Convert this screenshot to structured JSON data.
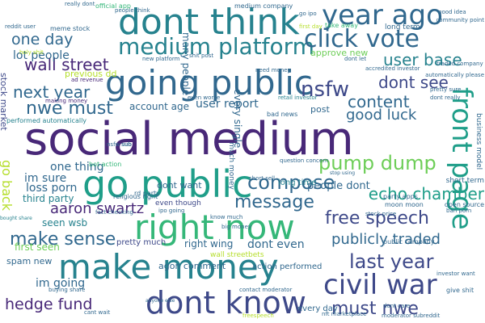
{
  "words": [
    "social medium",
    "going public",
    "dont think",
    "year ago",
    "go public",
    "right now",
    "make money",
    "dont know",
    "civil war",
    "medium platform",
    "click vote",
    "front page",
    "echo chamber",
    "wall street",
    "one day",
    "next year",
    "nwe must",
    "must nwe",
    "dont see",
    "content",
    "user base",
    "nsfw",
    "good luck",
    "lot people",
    "hedge fund",
    "last year",
    "free speech",
    "compose",
    "message",
    "pump dump",
    "aaron swartz",
    "make sense",
    "publicly traded",
    "im sure",
    "go back",
    "one thing",
    "loss porn",
    "third party",
    "seen wsb",
    "first seen",
    "dont even",
    "wall streetbets",
    "user report",
    "account age",
    "im going",
    "agon comment",
    "even though",
    "people dont",
    "every day",
    "every single",
    "performed automatically",
    "previous dd",
    "much money",
    "long time",
    "stock market",
    "approve new",
    "making money",
    "bot action",
    "retail investor",
    "dont want",
    "right wing",
    "spam new",
    "many people",
    "ad revenue",
    "post",
    "question concern",
    "moon moon",
    "rd party",
    "religious right",
    "party apps",
    "ipo going",
    "pretty much",
    "action performed",
    "contact moderator",
    "give shit",
    "investor want",
    "public company",
    "big money",
    "bought share",
    "buying share",
    "anyone else",
    "short sell",
    "stock price",
    "freespeech",
    "nft marketplace",
    "stop using",
    "new platform",
    "medium company",
    "people think",
    "official app",
    "really dont",
    "even worse",
    "meme stock",
    "holy shit",
    "go ipo",
    "take away",
    "long term",
    "short term",
    "open source",
    "business model",
    "traded company",
    "accredited investor",
    "automatically please",
    "dont care",
    "moderator subreddit",
    "fact checking",
    "reddit user",
    "bad news",
    "shit post",
    "cant wait",
    "know much",
    "sub",
    "nsfw sub",
    "need money",
    "pretty sure",
    "dont really",
    "first day",
    "dont let",
    "good idea",
    "community point",
    "ban porn"
  ],
  "colors": [
    "#440154",
    "#482878",
    "#3e4989",
    "#31688e",
    "#26828e",
    "#1f9e89",
    "#35b779",
    "#6ece58",
    "#b5de2b",
    "#fde725"
  ]
}
